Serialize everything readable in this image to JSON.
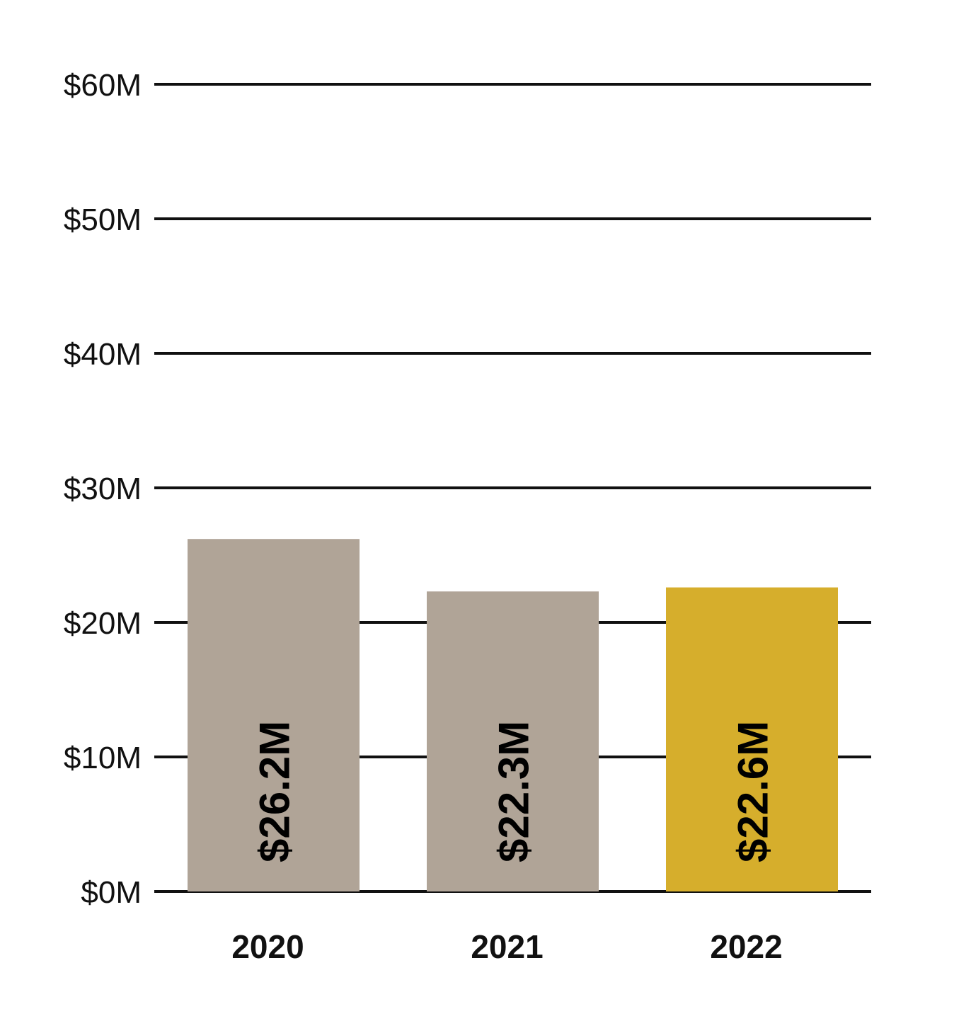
{
  "chart_data": {
    "type": "bar",
    "categories": [
      "2020",
      "2021",
      "2022"
    ],
    "values": [
      26.2,
      22.3,
      22.6
    ],
    "value_labels": [
      "$26.2M",
      "$22.3M",
      "$22.6M"
    ],
    "colors": [
      "#b0a497",
      "#b0a497",
      "#d6ae2c"
    ],
    "ylim": [
      0,
      60
    ],
    "yticks": [
      0,
      10,
      20,
      30,
      40,
      50,
      60
    ],
    "ytick_labels": [
      "$0M",
      "$10M",
      "$20M",
      "$30M",
      "$40M",
      "$50M",
      "$60M"
    ],
    "title": "",
    "xlabel": "",
    "ylabel": "",
    "grid": true,
    "unit": "$M"
  }
}
